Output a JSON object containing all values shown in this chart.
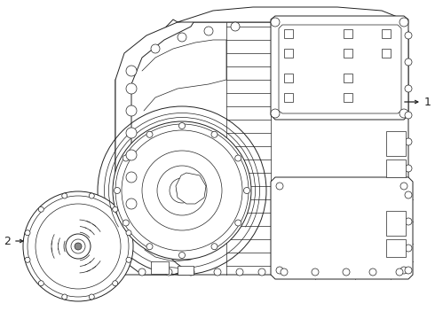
{
  "bg": "#ffffff",
  "lc": "#222222",
  "fig_w": 4.9,
  "fig_h": 3.6,
  "dpi": 100,
  "label1": "1",
  "label2": "2"
}
